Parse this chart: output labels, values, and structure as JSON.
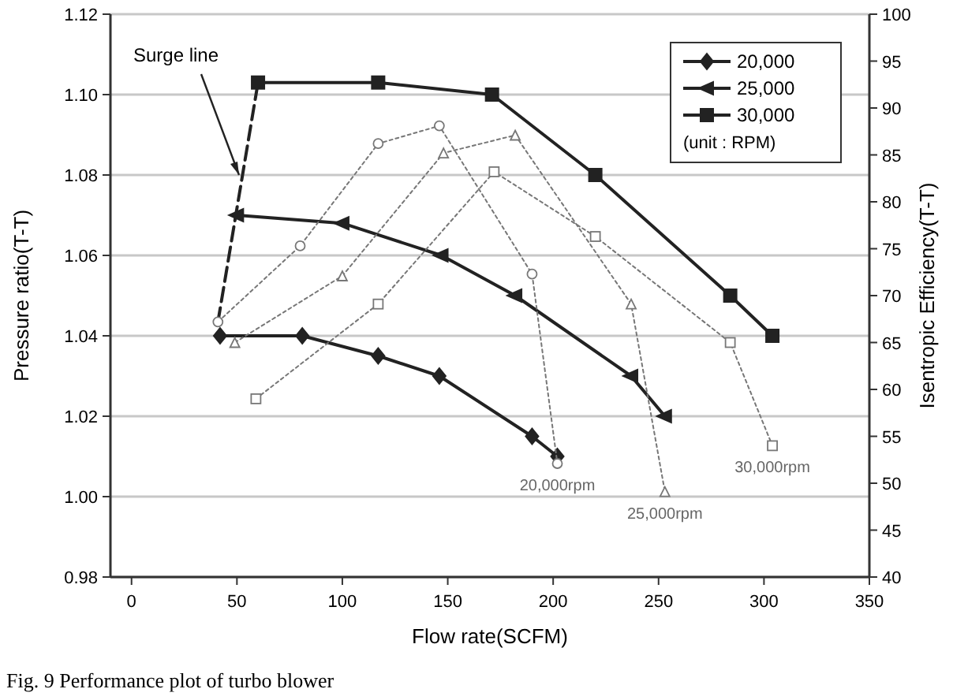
{
  "chart_data": {
    "type": "line",
    "xlabel": "Flow rate(SCFM)",
    "ylabel": "Pressure ratio(T-T)",
    "y2label": "Isentropic Efficiency(T-T)",
    "legend_title": "(unit : RPM)",
    "legend": "top right",
    "grid": "y",
    "xlim": [
      -10,
      350
    ],
    "xticks": [
      0,
      50,
      100,
      150,
      200,
      250,
      300,
      350
    ],
    "ylim": [
      0.98,
      1.12
    ],
    "yticks": [
      {
        "value": 0.98,
        "label": "0.98"
      },
      {
        "value": 1.0,
        "label": "1.00"
      },
      {
        "value": 1.02,
        "label": "1.02"
      },
      {
        "value": 1.04,
        "label": "1.04"
      },
      {
        "value": 1.06,
        "label": "1.06"
      },
      {
        "value": 1.08,
        "label": "1.08"
      },
      {
        "value": 1.1,
        "label": "1.10"
      },
      {
        "value": 1.12,
        "label": "1.12"
      }
    ],
    "y2lim": [
      40,
      100
    ],
    "y2ticks": [
      40,
      45,
      50,
      55,
      60,
      65,
      70,
      75,
      80,
      85,
      90,
      95,
      100
    ],
    "series": [
      {
        "name": "20,000",
        "color": "#222222",
        "marker": "diamond",
        "line_style": "solid",
        "x": [
          42,
          81,
          117,
          146,
          190,
          202
        ],
        "values": [
          1.04,
          1.04,
          1.035,
          1.03,
          1.015,
          1.01
        ]
      },
      {
        "name": "25,000",
        "color": "#222222",
        "marker": "triangle",
        "line_style": "solid",
        "x": [
          50,
          100,
          147,
          182,
          237,
          253
        ],
        "values": [
          1.07,
          1.068,
          1.06,
          1.05,
          1.03,
          1.02
        ]
      },
      {
        "name": "30,000",
        "color": "#222222",
        "marker": "square",
        "line_style": "solid",
        "x": [
          60,
          117,
          171,
          220,
          284,
          304
        ],
        "values": [
          1.103,
          1.103,
          1.1,
          1.08,
          1.05,
          1.04
        ]
      },
      {
        "color": "#222222",
        "marker": "none",
        "line_style": "dashed",
        "x": [
          41,
          60
        ],
        "values": [
          1.0435,
          1.103
        ]
      },
      {
        "name": "20,000rpm",
        "axis": "y2",
        "color": "#777777",
        "marker": "circle",
        "line_style": "dotted",
        "x": [
          41,
          80,
          117,
          146,
          190,
          202
        ],
        "values": [
          67.2,
          75.3,
          86.2,
          88.1,
          72.3,
          52.1
        ]
      },
      {
        "name": "25,000rpm",
        "axis": "y2",
        "color": "#777777",
        "marker": "triangle",
        "line_style": "dotted",
        "x": [
          49,
          100,
          148,
          182,
          237,
          253
        ],
        "values": [
          65.0,
          72.1,
          85.2,
          87.1,
          69.1,
          49.1
        ]
      },
      {
        "name": "30,000rpm",
        "axis": "y2",
        "color": "#777777",
        "marker": "square",
        "line_style": "dotted",
        "x": [
          59,
          117,
          172,
          220,
          284,
          304
        ],
        "values": [
          59.0,
          69.1,
          83.2,
          76.3,
          65.0,
          54.0
        ]
      }
    ],
    "annotations": [
      {
        "text": "Surge line",
        "x": 51,
        "y": 1.08
      },
      "Fig. 9 Performance plot of turbo blower"
    ]
  }
}
